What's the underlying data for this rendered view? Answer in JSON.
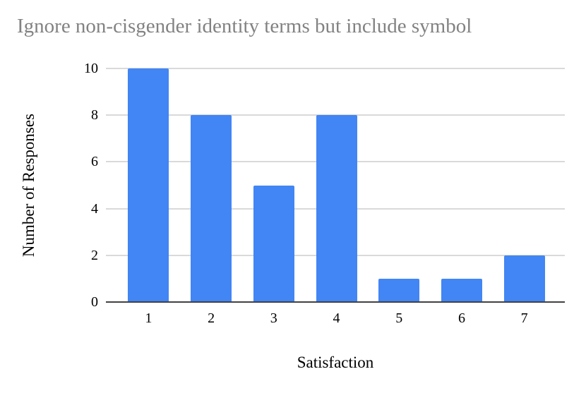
{
  "chart_data": {
    "type": "bar",
    "title": "Ignore non-cisgender identity terms but include symbol",
    "categories": [
      "1",
      "2",
      "3",
      "4",
      "5",
      "6",
      "7"
    ],
    "values": [
      10,
      8,
      5,
      8,
      1,
      1,
      2
    ],
    "xlabel": "Satisfaction",
    "ylabel": "Number of Responses",
    "ylim": [
      0,
      10
    ],
    "yticks": [
      0,
      2,
      4,
      6,
      8,
      10
    ],
    "grid": true,
    "legend": false,
    "colors": {
      "bar": "#4285f4",
      "gridline": "#d9d9d9",
      "axis_line": "#424242",
      "title_text": "#828282",
      "tick_text": "#000000"
    }
  }
}
